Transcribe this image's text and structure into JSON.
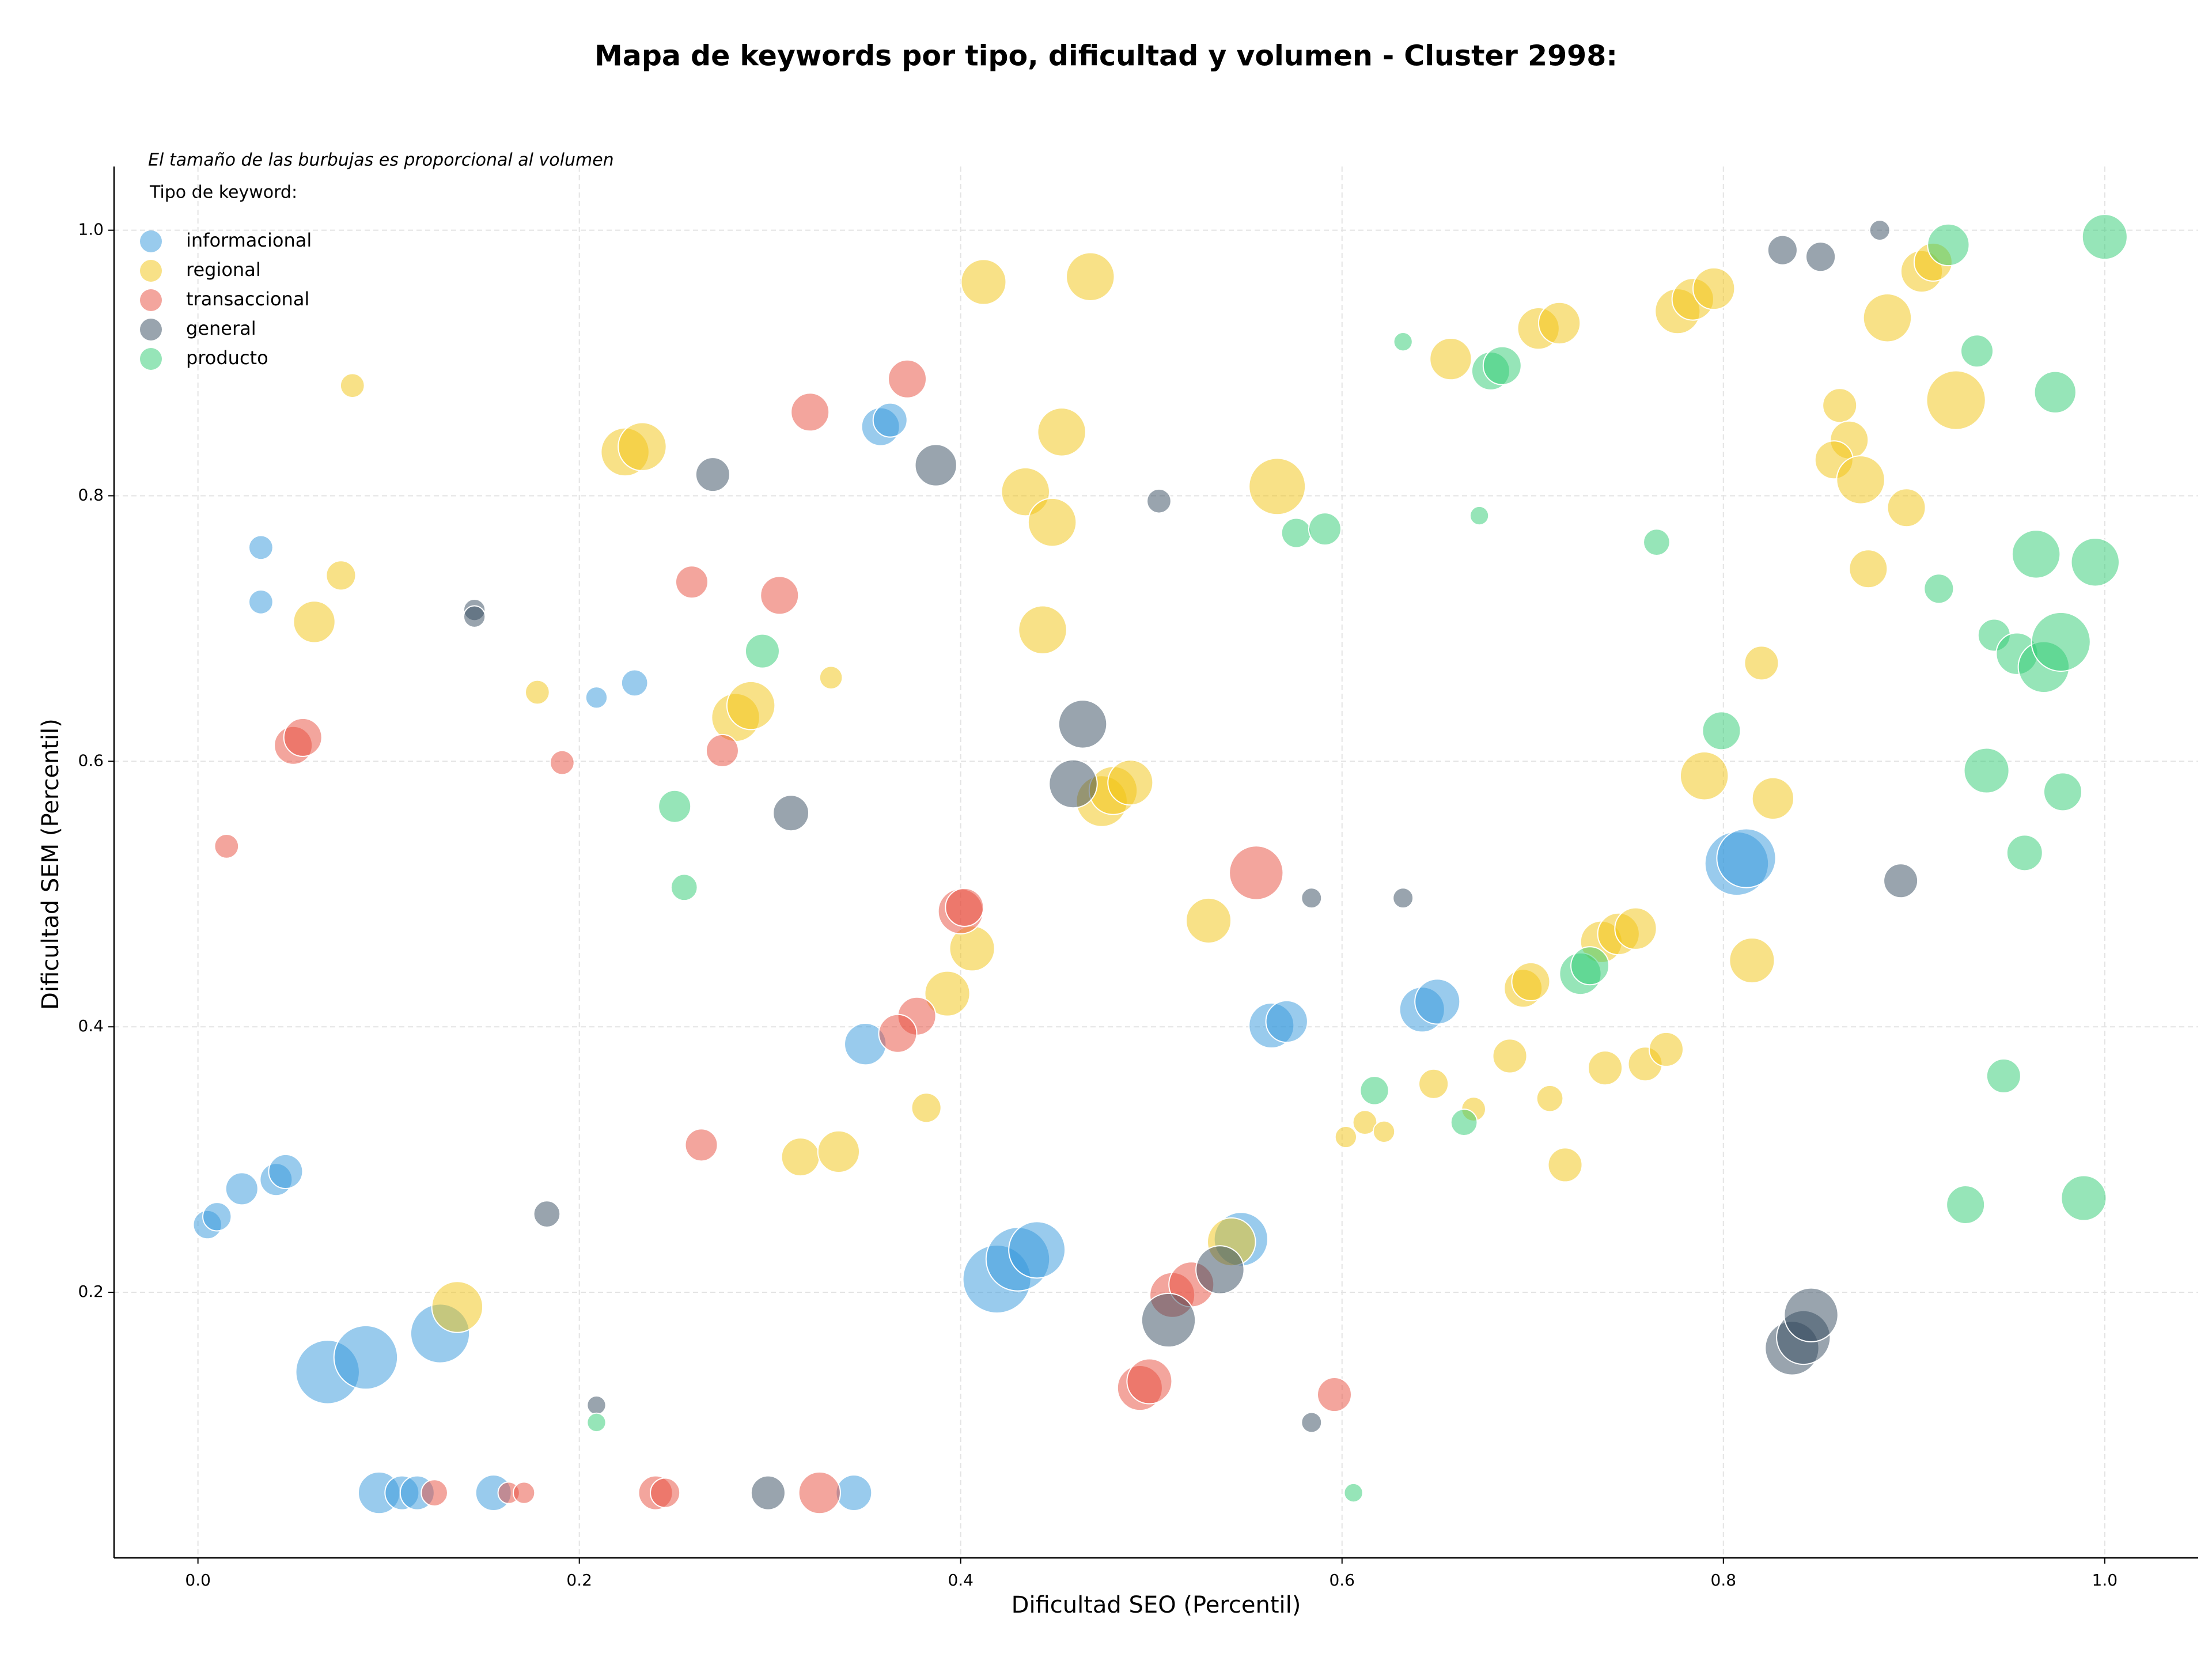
{
  "chart_data": {
    "type": "scatter",
    "title": "Mapa de keywords por tipo, dificultad y volumen - Cluster 2998:",
    "note": "El tamaño de las burbujas es proporcional al volumen",
    "legend_title": "Tipo de keyword:",
    "x_label": "Dificultad SEO (Percentil)",
    "y_label": "Dificultad SEM (Percentil)",
    "xlim": [
      -0.044,
      1.049
    ],
    "ylim": [
      0,
      1.048
    ],
    "xticks": [
      {
        "value": 0,
        "label": "0.0"
      },
      0.2,
      0.4,
      0.6,
      0.8,
      {
        "value": 1,
        "label": "1.0"
      }
    ],
    "yticks": [
      0.2,
      0.4,
      0.6,
      0.8,
      {
        "value": 1,
        "label": "1.0"
      }
    ],
    "grid": true,
    "legend": "upper left",
    "series": [
      {
        "name": "informacional",
        "color": "#3498db",
        "x": [
          0.033,
          0.033,
          0.005,
          0.01,
          0.023,
          0.041,
          0.046,
          0.068,
          0.088,
          0.127,
          0.095,
          0.107,
          0.115,
          0.155,
          0.344,
          0.209,
          0.229,
          0.358,
          0.363,
          0.35,
          0.419,
          0.43,
          0.44,
          0.547,
          0.563,
          0.571,
          0.642,
          0.65,
          0.807,
          0.812
        ],
        "values": [
          0.761,
          0.72,
          0.251,
          0.257,
          0.278,
          0.285,
          0.291,
          0.14,
          0.151,
          0.169,
          0.049,
          0.049,
          0.049,
          0.049,
          0.049,
          0.648,
          0.659,
          0.852,
          0.857,
          0.387,
          0.21,
          0.225,
          0.232,
          0.24,
          0.401,
          0.404,
          0.413,
          0.419,
          0.523,
          0.527
        ],
        "sizes": [
          10,
          10,
          14,
          14,
          18,
          18,
          20,
          70,
          70,
          60,
          30,
          20,
          20,
          22,
          22,
          8,
          12,
          25,
          20,
          30,
          80,
          70,
          55,
          50,
          35,
          30,
          35,
          35,
          70,
          60
        ]
      },
      {
        "name": "regional",
        "color": "#f1c40f",
        "x": [
          0.081,
          0.075,
          0.061,
          0.224,
          0.233,
          0.178,
          0.332,
          0.282,
          0.29,
          0.412,
          0.468,
          0.434,
          0.453,
          0.448,
          0.443,
          0.474,
          0.48,
          0.489,
          0.566,
          0.53,
          0.406,
          0.393,
          0.382,
          0.316,
          0.336,
          0.136,
          0.657,
          0.703,
          0.714,
          0.776,
          0.784,
          0.795,
          0.886,
          0.904,
          0.91,
          0.922,
          0.861,
          0.866,
          0.858,
          0.872,
          0.896,
          0.876,
          0.82,
          0.79,
          0.826,
          0.815,
          0.695,
          0.699,
          0.736,
          0.745,
          0.754,
          0.688,
          0.648,
          0.669,
          0.709,
          0.717,
          0.738,
          0.759,
          0.77,
          0.602,
          0.612,
          0.622,
          0.542
        ],
        "values": [
          0.883,
          0.74,
          0.705,
          0.833,
          0.837,
          0.652,
          0.663,
          0.633,
          0.642,
          0.961,
          0.965,
          0.803,
          0.848,
          0.78,
          0.699,
          0.57,
          0.578,
          0.584,
          0.807,
          0.48,
          0.459,
          0.425,
          0.339,
          0.302,
          0.306,
          0.189,
          0.903,
          0.926,
          0.93,
          0.939,
          0.948,
          0.956,
          0.934,
          0.969,
          0.976,
          0.872,
          0.868,
          0.842,
          0.827,
          0.812,
          0.791,
          0.745,
          0.674,
          0.589,
          0.572,
          0.45,
          0.429,
          0.434,
          0.464,
          0.47,
          0.474,
          0.378,
          0.357,
          0.338,
          0.346,
          0.296,
          0.369,
          0.372,
          0.383,
          0.317,
          0.328,
          0.321,
          0.238
        ],
        "sizes": [
          10,
          15,
          30,
          40,
          40,
          10,
          9,
          40,
          40,
          35,
          40,
          40,
          40,
          40,
          40,
          45,
          40,
          35,
          55,
          35,
          35,
          35,
          15,
          25,
          30,
          45,
          30,
          30,
          30,
          35,
          30,
          30,
          40,
          30,
          25,
          60,
          20,
          25,
          25,
          40,
          25,
          25,
          20,
          40,
          30,
          35,
          25,
          25,
          30,
          30,
          30,
          20,
          15,
          10,
          12,
          20,
          20,
          20,
          20,
          8,
          10,
          8,
          40
        ]
      },
      {
        "name": "transaccional",
        "color": "#e74c3c",
        "x": [
          0.015,
          0.05,
          0.055,
          0.191,
          0.321,
          0.372,
          0.259,
          0.305,
          0.275,
          0.264,
          0.4,
          0.402,
          0.377,
          0.367,
          0.555,
          0.596,
          0.494,
          0.499,
          0.511,
          0.521,
          0.124,
          0.163,
          0.171,
          0.24,
          0.245,
          0.326
        ],
        "values": [
          0.536,
          0.612,
          0.618,
          0.599,
          0.863,
          0.888,
          0.735,
          0.725,
          0.608,
          0.311,
          0.487,
          0.49,
          0.408,
          0.395,
          0.516,
          0.123,
          0.128,
          0.133,
          0.198,
          0.206,
          0.049,
          0.049,
          0.049,
          0.049,
          0.049,
          0.049
        ],
        "sizes": [
          10,
          25,
          25,
          10,
          25,
          25,
          18,
          25,
          18,
          18,
          35,
          25,
          25,
          25,
          50,
          20,
          35,
          35,
          35,
          35,
          12,
          8,
          8,
          20,
          15,
          30
        ]
      },
      {
        "name": "general",
        "color": "#34495e",
        "x": [
          0.145,
          0.145,
          0.183,
          0.209,
          0.27,
          0.311,
          0.387,
          0.299,
          0.464,
          0.459,
          0.504,
          0.509,
          0.536,
          0.584,
          0.632,
          0.584,
          0.831,
          0.851,
          0.882,
          0.893,
          0.836,
          0.842,
          0.846
        ],
        "values": [
          0.714,
          0.709,
          0.259,
          0.115,
          0.816,
          0.561,
          0.823,
          0.049,
          0.628,
          0.583,
          0.796,
          0.179,
          0.217,
          0.497,
          0.497,
          0.102,
          0.985,
          0.98,
          1.0,
          0.51,
          0.158,
          0.166,
          0.183
        ],
        "sizes": [
          8,
          8,
          12,
          6,
          20,
          22,
          30,
          20,
          40,
          40,
          10,
          50,
          40,
          7,
          7,
          7,
          15,
          15,
          7,
          20,
          50,
          50,
          50
        ]
      },
      {
        "name": "producto",
        "color": "#2ecc71",
        "x": [
          0.209,
          0.25,
          0.255,
          0.296,
          0.576,
          0.591,
          0.632,
          0.678,
          0.684,
          0.672,
          0.617,
          0.664,
          0.606,
          0.725,
          0.73,
          0.765,
          0.799,
          0.918,
          1.0,
          0.933,
          0.974,
          0.913,
          0.964,
          0.995,
          0.942,
          0.954,
          0.968,
          0.977,
          0.938,
          0.978,
          0.958,
          0.947,
          0.927,
          0.989
        ],
        "values": [
          0.102,
          0.566,
          0.505,
          0.683,
          0.772,
          0.775,
          0.916,
          0.894,
          0.898,
          0.785,
          0.352,
          0.328,
          0.049,
          0.44,
          0.446,
          0.765,
          0.623,
          0.989,
          0.995,
          0.909,
          0.878,
          0.73,
          0.756,
          0.75,
          0.695,
          0.681,
          0.671,
          0.69,
          0.593,
          0.577,
          0.531,
          0.363,
          0.266,
          0.271
        ],
        "sizes": [
          6,
          18,
          12,
          20,
          15,
          18,
          6,
          25,
          25,
          6,
          14,
          12,
          6,
          30,
          25,
          12,
          25,
          30,
          35,
          18,
          30,
          15,
          40,
          40,
          18,
          30,
          45,
          60,
          35,
          25,
          22,
          20,
          25,
          35
        ]
      }
    ]
  }
}
